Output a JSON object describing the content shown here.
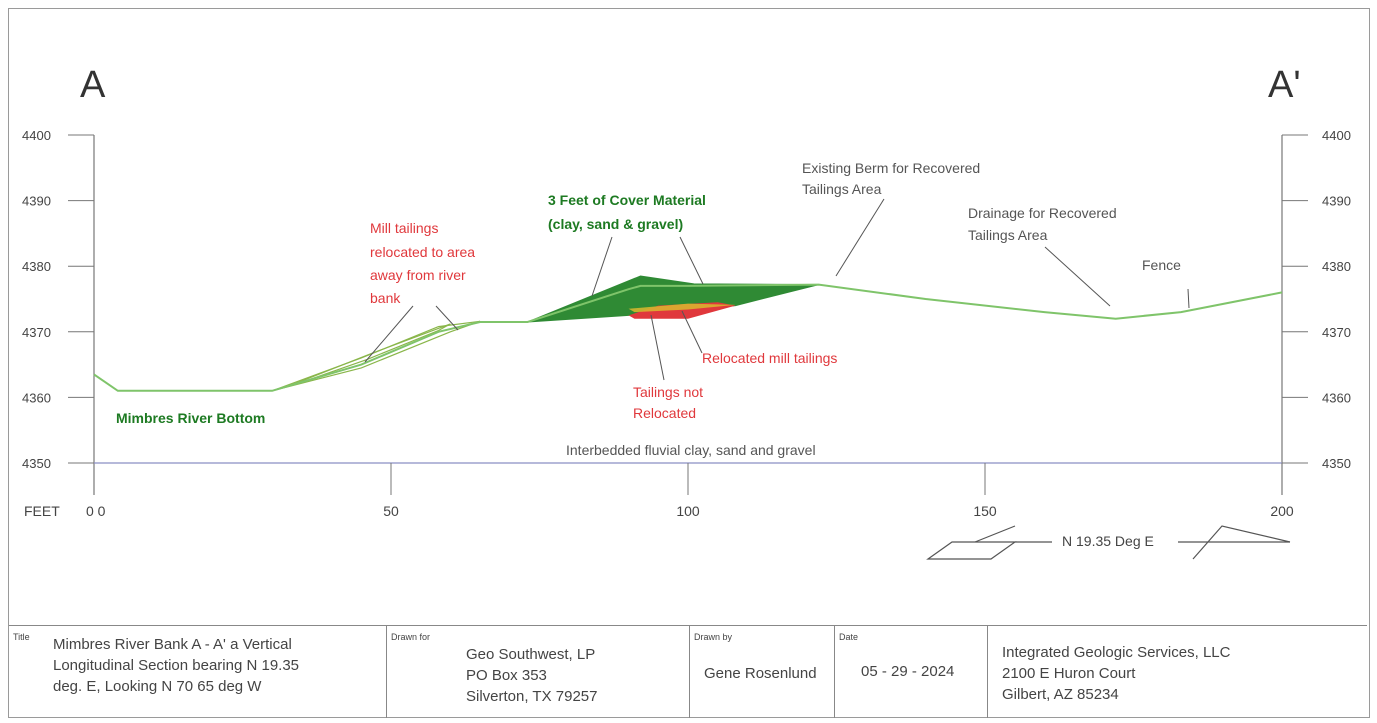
{
  "section": {
    "label_left": "A",
    "label_right": "A'",
    "units_label": "FEET",
    "origin_label": "0 0",
    "x_ticks": [
      50,
      100,
      150,
      200
    ],
    "y_ticks": [
      4400,
      4390,
      4380,
      4370,
      4360,
      4350
    ],
    "x_range": [
      0,
      200
    ],
    "y_range": [
      4350,
      4400
    ],
    "bearing_label": "N 19.35 Deg E",
    "ground_profile": [
      [
        0,
        4363.5
      ],
      [
        4,
        4361
      ],
      [
        30,
        4361
      ],
      [
        45,
        4365
      ],
      [
        58,
        4370
      ],
      [
        65,
        4371.5
      ],
      [
        73,
        4371.5
      ],
      [
        90,
        4376.5
      ],
      [
        92,
        4377
      ],
      [
        100,
        4377
      ],
      [
        122,
        4377.2
      ],
      [
        140,
        4375
      ],
      [
        160,
        4373
      ],
      [
        172,
        4372
      ],
      [
        183,
        4373
      ],
      [
        200,
        4376
      ]
    ],
    "cover_material_polygon": [
      [
        73,
        4371.5
      ],
      [
        92,
        4378.5
      ],
      [
        101,
        4377.3
      ],
      [
        122,
        4377.2
      ],
      [
        108,
        4374
      ],
      [
        90,
        4372.5
      ],
      [
        73,
        4371.5
      ]
    ],
    "relocated_tailings_polygon": [
      [
        90,
        4372.5
      ],
      [
        95,
        4374
      ],
      [
        105,
        4374.5
      ],
      [
        108,
        4374
      ],
      [
        100,
        4372
      ],
      [
        91,
        4372
      ]
    ],
    "yellow_layer_polygon": [
      [
        90,
        4373.5
      ],
      [
        100,
        4374.3
      ],
      [
        108,
        4374.1
      ],
      [
        100,
        4373.4
      ],
      [
        91,
        4373
      ]
    ],
    "tailings_not_relocated_lenses": [
      [
        [
          30,
          4361
        ],
        [
          45,
          4366
        ],
        [
          58,
          4370.8
        ],
        [
          65,
          4371.6
        ],
        [
          60,
          4370
        ],
        [
          45,
          4364.5
        ],
        [
          30,
          4361
        ]
      ],
      [
        [
          33,
          4361.8
        ],
        [
          47,
          4366.8
        ],
        [
          60,
          4371.2
        ],
        [
          58,
          4370.2
        ],
        [
          46,
          4365.8
        ],
        [
          34,
          4362
        ]
      ]
    ],
    "annotations": {
      "mill_tailings": [
        "Mill tailings",
        "relocated to area",
        "away from river",
        "bank"
      ],
      "cover_material": [
        "3 Feet of Cover Material",
        "(clay, sand & gravel)"
      ],
      "existing_berm": [
        "Existing Berm for Recovered",
        "Tailings Area"
      ],
      "drainage": [
        "Drainage for Recovered",
        "Tailings Area"
      ],
      "fence": "Fence",
      "relocated_mill_tailings": "Relocated mill tailings",
      "tailings_not_relocated": [
        "Tailings not",
        "Relocated"
      ],
      "river_bottom": "Mimbres River Bottom",
      "interbedded": "Interbedded fluvial clay, sand and gravel"
    }
  },
  "titleblock": {
    "title_caption": "Title",
    "title_lines": [
      "Mimbres River Bank   A - A'  a Vertical",
      "Longitudinal Section bearing N 19.35",
      "deg.  E,  Looking N 70 65 deg W"
    ],
    "drawn_for_caption": "Drawn for",
    "drawn_for_lines": [
      "Geo Southwest, LP",
      "PO Box 353",
      "Silverton, TX 79257"
    ],
    "drawn_by_caption": "Drawn by",
    "drawn_by": "Gene Rosenlund",
    "date_caption": "Date",
    "date": "05 - 29 - 2024",
    "company_lines": [
      "Integrated Geologic Services, LLC",
      "2100 E Huron Court",
      "Gilbert, AZ  85234"
    ]
  },
  "colors": {
    "ground_line": "#7fc46a",
    "cover_fill": "#2f8a34",
    "tailings_red": "#e0383c",
    "label_red": "#e0383c",
    "label_green": "#1d7a22",
    "leader_gray": "#555555",
    "axis_gray": "#777777",
    "baseline_blue": "#8a8fc4"
  }
}
